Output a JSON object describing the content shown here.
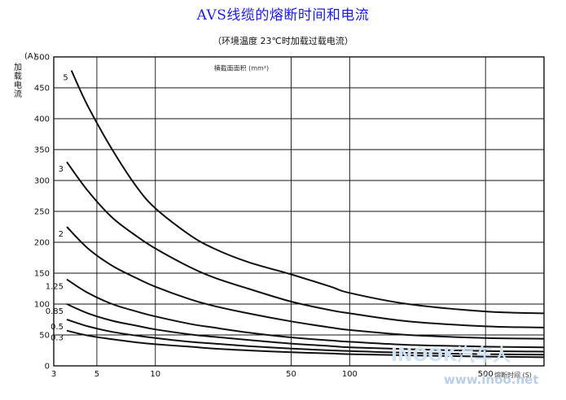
{
  "title": "AVS线缆的熔断时间和电流",
  "subtitle": "（环境温度 23℃时加载过载电流）",
  "watermark": {
    "logo": "INOOK汽车人",
    "url": "www.inoo.net"
  },
  "colors": {
    "title": "#1a1ae0",
    "axis": "#111111",
    "grid": "#111111",
    "curve": "#111111"
  },
  "chart_data": {
    "type": "line",
    "title": "AVS线缆的熔断时间和电流",
    "subtitle": "（环境温度 23℃时加载过载电流）",
    "xlabel": "熔断时间 (S)",
    "ylabel": "加载电流 (A)",
    "y_axis_label_chars": [
      "(",
      "A",
      ")"
    ],
    "y_axis_label_vertical": [
      "加",
      "载",
      "电",
      "流"
    ],
    "x_scale": "log",
    "xlim": [
      3,
      1000
    ],
    "ylim": [
      0,
      500
    ],
    "x_ticks": [
      {
        "value": 3,
        "label": "3"
      },
      {
        "value": 5,
        "label": "5"
      },
      {
        "value": 10,
        "label": "10"
      },
      {
        "value": 50,
        "label": "50"
      },
      {
        "value": 100,
        "label": "100"
      },
      {
        "value": 500,
        "label": "500"
      }
    ],
    "x_gridlines": [
      3,
      5,
      10,
      50,
      100,
      500,
      1000
    ],
    "y_ticks": [
      0,
      50,
      100,
      150,
      200,
      250,
      300,
      350,
      400,
      450,
      500
    ],
    "y_gridlines": [
      0,
      50,
      100,
      150,
      200,
      250,
      300,
      350,
      400,
      450,
      500
    ],
    "grid": true,
    "annotation": "横截面面积 (mm²)",
    "series": [
      {
        "name": "5",
        "x": [
          3.7,
          4.5,
          6,
          8,
          10,
          15,
          20,
          30,
          50,
          80,
          100,
          200,
          500,
          1000
        ],
        "y": [
          478,
          420,
          350,
          290,
          255,
          212,
          190,
          168,
          148,
          128,
          118,
          100,
          88,
          85
        ]
      },
      {
        "name": "3",
        "x": [
          3.5,
          4.5,
          6,
          8,
          10,
          15,
          20,
          30,
          50,
          80,
          100,
          200,
          500,
          1000
        ],
        "y": [
          330,
          283,
          240,
          210,
          190,
          160,
          143,
          125,
          104,
          90,
          85,
          72,
          64,
          62
        ]
      },
      {
        "name": "2",
        "x": [
          3.5,
          4.5,
          6,
          8,
          10,
          15,
          20,
          30,
          50,
          80,
          100,
          200,
          500,
          1000
        ],
        "y": [
          225,
          190,
          162,
          142,
          128,
          108,
          97,
          85,
          72,
          62,
          58,
          50,
          45,
          44
        ]
      },
      {
        "name": "1.25",
        "x": [
          3.5,
          4.5,
          6,
          8,
          10,
          15,
          20,
          30,
          50,
          80,
          100,
          200,
          500,
          1000
        ],
        "y": [
          140,
          118,
          100,
          88,
          80,
          68,
          62,
          54,
          46,
          41,
          39,
          34,
          31,
          30
        ]
      },
      {
        "name": "0.85",
        "x": [
          3.5,
          4.5,
          6,
          8,
          10,
          15,
          20,
          30,
          50,
          80,
          100,
          200,
          500,
          1000
        ],
        "y": [
          100,
          85,
          73,
          65,
          59,
          51,
          47,
          42,
          36,
          32,
          30,
          27,
          24,
          23
        ]
      },
      {
        "name": "0.5",
        "x": [
          3.5,
          4.5,
          6,
          8,
          10,
          15,
          20,
          30,
          50,
          80,
          100,
          200,
          500,
          1000
        ],
        "y": [
          75,
          64,
          55,
          49,
          45,
          39,
          36,
          32,
          28,
          25,
          24,
          21,
          19,
          18
        ]
      },
      {
        "name": "0.3",
        "x": [
          3.5,
          4.5,
          6,
          8,
          10,
          15,
          20,
          30,
          50,
          80,
          100,
          200,
          500,
          1000
        ],
        "y": [
          57,
          49,
          43,
          38,
          35,
          31,
          28,
          25,
          22,
          20,
          19,
          17,
          15,
          14
        ]
      }
    ]
  }
}
